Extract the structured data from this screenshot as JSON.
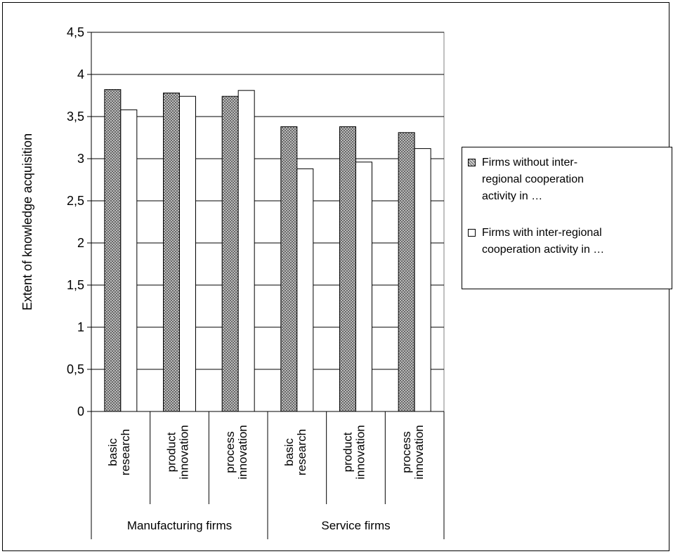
{
  "chart_data": {
    "type": "bar",
    "title": "",
    "ylabel": "Extent of knowledge acquisition",
    "ylim": [
      0,
      4.5
    ],
    "yticks": [
      "0",
      "0,5",
      "1",
      "1,5",
      "2",
      "2,5",
      "3",
      "3,5",
      "4",
      "4,5"
    ],
    "categories": [
      {
        "label": "basic\nresearch",
        "group": "Manufacturing firms"
      },
      {
        "label": "product\ninnovation",
        "group": "Manufacturing firms"
      },
      {
        "label": "process\ninnovation",
        "group": "Manufacturing firms"
      },
      {
        "label": "basic\nresearch",
        "group": "Service firms"
      },
      {
        "label": "product\ninnovation",
        "group": "Service firms"
      },
      {
        "label": "process\ninnovation",
        "group": "Service firms"
      }
    ],
    "groups": [
      "Manufacturing firms",
      "Service firms"
    ],
    "series": [
      {
        "name": "Firms without inter-\nregional cooperation\nactivity in …",
        "pattern": "crosshatch",
        "color": "#b8b8b8",
        "values": [
          3.82,
          3.78,
          3.74,
          3.38,
          3.38,
          3.31
        ]
      },
      {
        "name": "Firms with inter-regional\ncooperation activity in …",
        "pattern": "solid",
        "color": "#ffffff",
        "values": [
          3.58,
          3.74,
          3.81,
          2.88,
          2.96,
          3.12
        ]
      }
    ],
    "grid": true,
    "legend_position": "right"
  }
}
